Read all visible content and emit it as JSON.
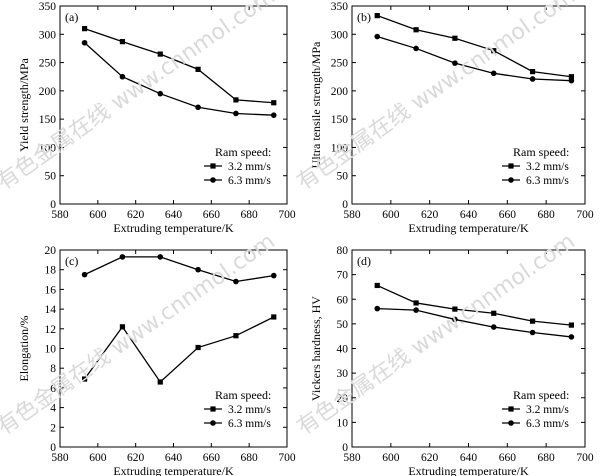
{
  "watermark": "有色金属在线 www.cnnmol.com",
  "chart_data": [
    {
      "type": "line",
      "panel_label": "(a)",
      "xlabel": "Extruding temperature/K",
      "ylabel": "Yield strength/MPa",
      "xlim": [
        580,
        700
      ],
      "ylim": [
        0,
        350
      ],
      "xticks": [
        580,
        600,
        620,
        640,
        660,
        680,
        700
      ],
      "yticks": [
        0,
        50,
        100,
        150,
        200,
        250,
        300,
        350
      ],
      "legend_title": "Ram speed:",
      "legend_position": "lower-right",
      "series": [
        {
          "name": "3.2 mm/s",
          "marker": "square",
          "x": [
            593,
            613,
            633,
            653,
            673,
            693
          ],
          "values": [
            310,
            287,
            265,
            238,
            184,
            179
          ]
        },
        {
          "name": "6.3 mm/s",
          "marker": "circle",
          "x": [
            593,
            613,
            633,
            653,
            673,
            693
          ],
          "values": [
            285,
            225,
            195,
            171,
            160,
            157
          ]
        }
      ]
    },
    {
      "type": "line",
      "panel_label": "(b)",
      "xlabel": "Extruding temperature/K",
      "ylabel": "Ultra tensile strength/MPa",
      "xlim": [
        580,
        700
      ],
      "ylim": [
        0,
        350
      ],
      "xticks": [
        580,
        600,
        620,
        640,
        660,
        680,
        700
      ],
      "yticks": [
        0,
        50,
        100,
        150,
        200,
        250,
        300,
        350
      ],
      "legend_title": "Ram speed:",
      "legend_position": "lower-right",
      "series": [
        {
          "name": "3.2 mm/s",
          "marker": "square",
          "x": [
            593,
            613,
            633,
            653,
            673,
            693
          ],
          "values": [
            333,
            308,
            293,
            271,
            234,
            225
          ]
        },
        {
          "name": "6.3 mm/s",
          "marker": "circle",
          "x": [
            593,
            613,
            633,
            653,
            673,
            693
          ],
          "values": [
            296,
            275,
            249,
            231,
            221,
            218
          ]
        }
      ]
    },
    {
      "type": "line",
      "panel_label": "(c)",
      "xlabel": "Extruding temperature/K",
      "ylabel": "Elongation/%",
      "xlim": [
        580,
        700
      ],
      "ylim": [
        0,
        20
      ],
      "xticks": [
        580,
        600,
        620,
        640,
        660,
        680,
        700
      ],
      "yticks": [
        0,
        2,
        4,
        6,
        8,
        10,
        12,
        14,
        16,
        18,
        20
      ],
      "legend_title": "Ram speed:",
      "legend_position": "lower-right",
      "series": [
        {
          "name": "3.2 mm/s",
          "marker": "square",
          "x": [
            593,
            613,
            633,
            653,
            673,
            693
          ],
          "values": [
            6.9,
            12.2,
            6.6,
            10.1,
            11.3,
            13.2
          ]
        },
        {
          "name": "6.3 mm/s",
          "marker": "circle",
          "x": [
            593,
            613,
            633,
            653,
            673,
            693
          ],
          "values": [
            17.5,
            19.3,
            19.3,
            18.0,
            16.8,
            17.4
          ]
        }
      ]
    },
    {
      "type": "line",
      "panel_label": "(d)",
      "xlabel": "Extruding temperature/K",
      "ylabel": "Vickers hardness, HV",
      "xlim": [
        580,
        700
      ],
      "ylim": [
        0,
        80
      ],
      "xticks": [
        580,
        600,
        620,
        640,
        660,
        680,
        700
      ],
      "yticks": [
        0,
        10,
        20,
        30,
        40,
        50,
        60,
        70,
        80
      ],
      "legend_title": "Ram speed:",
      "legend_position": "lower-right",
      "series": [
        {
          "name": "3.2 mm/s",
          "marker": "square",
          "x": [
            593,
            613,
            633,
            653,
            673,
            693
          ],
          "values": [
            65.6,
            58.5,
            56.0,
            54.3,
            51.1,
            49.5
          ]
        },
        {
          "name": "6.3 mm/s",
          "marker": "circle",
          "x": [
            593,
            613,
            633,
            653,
            673,
            693
          ],
          "values": [
            56.2,
            55.6,
            51.8,
            48.7,
            46.5,
            44.7
          ]
        }
      ]
    }
  ]
}
